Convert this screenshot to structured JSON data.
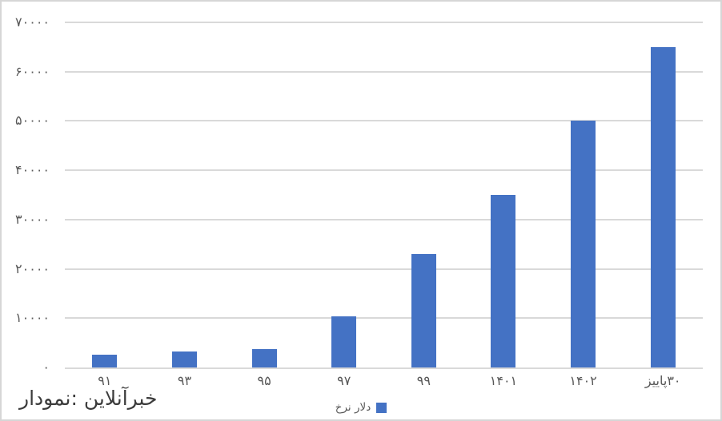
{
  "chart_data": {
    "type": "bar",
    "title": "",
    "xlabel": "",
    "ylabel": "",
    "categories": [
      "۹۱",
      "۹۳",
      "۹۵",
      "۹۷",
      "۹۹",
      "۱۴۰۱",
      "۱۴۰۲",
      "پاییز۰۳"
    ],
    "values": [
      2600,
      3300,
      3700,
      10400,
      23000,
      35000,
      50000,
      65000
    ],
    "series_name": "نرخ دلار",
    "ylim": [
      0,
      70000
    ],
    "ytick_step": 10000,
    "ytick_labels": [
      "۰",
      "۱۰۰۰۰",
      "۲۰۰۰۰",
      "۳۰۰۰۰",
      "۴۰۰۰۰",
      "۵۰۰۰۰",
      "۶۰۰۰۰",
      "۷۰۰۰۰"
    ],
    "grid": true,
    "legend_position": "bottom",
    "legend_label": "نرخ دلار",
    "bar_color": "#4472c4",
    "grid_color": "#d9d9d9",
    "axis_label_color": "#595959"
  },
  "footer": {
    "source": "نمودار: خبرآنلاین",
    "source_color": "#3b3b3b"
  },
  "frame": {
    "background": "#ffffff",
    "border_color": "#d6d6d6"
  }
}
